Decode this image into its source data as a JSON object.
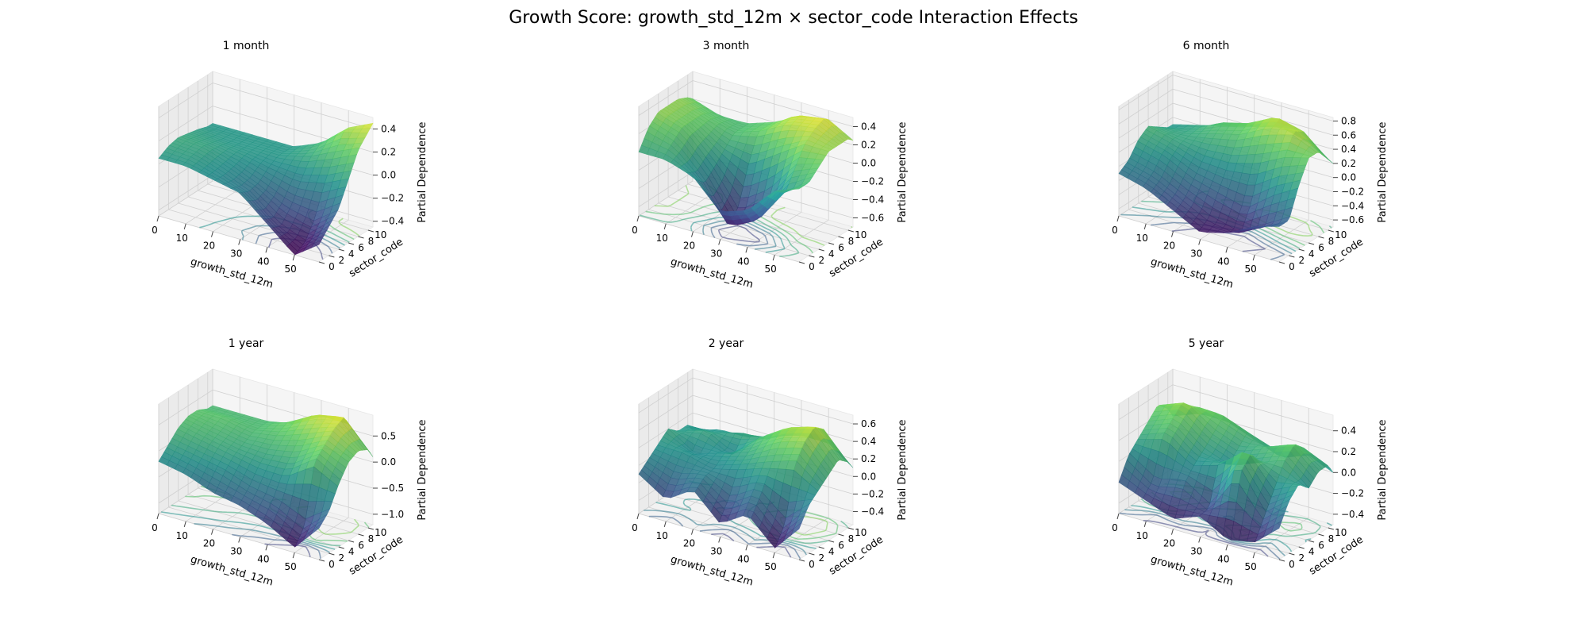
{
  "figure_title": "Growth Score: growth_std_12m × sector_code Interaction Effects",
  "colormap": [
    "#440154",
    "#3b528b",
    "#21918c",
    "#5ec962",
    "#fde725"
  ],
  "chart_data": [
    {
      "type": "surface3d",
      "title": "1 month",
      "xlabel": "growth_std_12m",
      "ylabel": "sector_code",
      "zlabel": "Partial Dependence",
      "xlim": [
        0,
        59
      ],
      "ylim": [
        0,
        11
      ],
      "zlim": [
        -0.45,
        0.5
      ],
      "xticks": [
        0,
        10,
        20,
        30,
        40,
        50
      ],
      "yticks": [
        0,
        2,
        4,
        6,
        8,
        10
      ],
      "zticks": [
        -0.4,
        -0.2,
        0.0,
        0.2,
        0.4
      ],
      "grid": true,
      "contour_projection": true,
      "grid_x": [
        0,
        10,
        20,
        30,
        40,
        50,
        59
      ],
      "grid_y": [
        0,
        2,
        4,
        6,
        8,
        10,
        11
      ],
      "z": [
        [
          0.05,
          0.05,
          0.0,
          -0.05,
          -0.25,
          -0.45,
          -0.3
        ],
        [
          0.1,
          0.08,
          0.0,
          -0.1,
          -0.3,
          -0.4,
          -0.2
        ],
        [
          0.12,
          0.1,
          0.02,
          -0.08,
          -0.2,
          -0.25,
          -0.1
        ],
        [
          0.1,
          0.08,
          0.05,
          0.0,
          -0.05,
          0.0,
          0.1
        ],
        [
          0.08,
          0.05,
          0.05,
          0.05,
          0.1,
          0.2,
          0.3
        ],
        [
          0.05,
          0.05,
          0.05,
          0.05,
          0.15,
          0.35,
          0.4
        ],
        [
          0.05,
          0.05,
          0.05,
          0.05,
          0.15,
          0.35,
          0.45
        ]
      ]
    },
    {
      "type": "surface3d",
      "title": "3 month",
      "xlabel": "growth_std_12m",
      "ylabel": "sector_code",
      "zlabel": "Partial Dependence",
      "xlim": [
        0,
        59
      ],
      "ylim": [
        0,
        11
      ],
      "zlim": [
        -0.7,
        0.5
      ],
      "xticks": [
        0,
        10,
        20,
        30,
        40,
        50
      ],
      "yticks": [
        0,
        2,
        4,
        6,
        8,
        10
      ],
      "zticks": [
        -0.6,
        -0.4,
        -0.2,
        0.0,
        0.2,
        0.4
      ],
      "grid": true,
      "contour_projection": true,
      "grid_x": [
        0,
        10,
        20,
        30,
        40,
        50,
        59
      ],
      "grid_y": [
        0,
        2,
        4,
        6,
        8,
        10,
        11
      ],
      "z": [
        [
          0.0,
          0.0,
          -0.1,
          -0.4,
          -0.3,
          0.0,
          0.1
        ],
        [
          0.2,
          0.1,
          -0.2,
          -0.65,
          -0.5,
          -0.1,
          0.1
        ],
        [
          0.3,
          0.2,
          -0.1,
          -0.5,
          -0.3,
          0.1,
          0.2
        ],
        [
          0.3,
          0.2,
          0.0,
          -0.1,
          0.1,
          0.3,
          0.3
        ],
        [
          0.3,
          0.2,
          0.1,
          0.2,
          0.35,
          0.4,
          0.3
        ],
        [
          0.25,
          0.15,
          0.1,
          0.2,
          0.4,
          0.45,
          0.3
        ],
        [
          0.2,
          0.1,
          0.1,
          0.2,
          0.35,
          0.4,
          0.25
        ]
      ]
    },
    {
      "type": "surface3d",
      "title": "6 month",
      "xlabel": "growth_std_12m",
      "ylabel": "sector_code",
      "zlabel": "Partial Dependence",
      "xlim": [
        0,
        59
      ],
      "ylim": [
        0,
        11
      ],
      "zlim": [
        -0.7,
        0.85
      ],
      "xticks": [
        0,
        10,
        20,
        30,
        40,
        50
      ],
      "yticks": [
        0,
        2,
        4,
        6,
        8,
        10
      ],
      "zticks": [
        -0.6,
        -0.4,
        -0.2,
        0.0,
        0.2,
        0.4,
        0.6,
        0.8
      ],
      "grid": true,
      "contour_projection": true,
      "grid_x": [
        0,
        10,
        20,
        30,
        40,
        50,
        59
      ],
      "grid_y": [
        0,
        2,
        4,
        6,
        8,
        10,
        11
      ],
      "z": [
        [
          -0.1,
          -0.2,
          -0.4,
          -0.6,
          -0.5,
          -0.3,
          -0.2
        ],
        [
          0.0,
          -0.1,
          -0.3,
          -0.5,
          -0.6,
          -0.4,
          -0.2
        ],
        [
          0.2,
          0.1,
          -0.1,
          -0.2,
          -0.3,
          0.0,
          0.2
        ],
        [
          0.3,
          0.2,
          0.1,
          0.1,
          0.2,
          0.4,
          0.5
        ],
        [
          0.2,
          0.2,
          0.3,
          0.4,
          0.6,
          0.7,
          0.5
        ],
        [
          0.1,
          0.2,
          0.4,
          0.5,
          0.7,
          0.6,
          0.3
        ],
        [
          0.1,
          0.2,
          0.3,
          0.4,
          0.5,
          0.4,
          0.2
        ]
      ]
    },
    {
      "type": "surface3d",
      "title": "1 year",
      "xlabel": "growth_std_12m",
      "ylabel": "sector_code",
      "zlabel": "Partial Dependence",
      "xlim": [
        0,
        59
      ],
      "ylim": [
        0,
        11
      ],
      "zlim": [
        -1.2,
        0.9
      ],
      "xticks": [
        0,
        10,
        20,
        30,
        40,
        50
      ],
      "yticks": [
        0,
        2,
        4,
        6,
        8,
        10
      ],
      "zticks": [
        -1.0,
        -0.5,
        0.0,
        0.5
      ],
      "grid": true,
      "contour_projection": true,
      "grid_x": [
        0,
        10,
        20,
        30,
        40,
        50,
        59
      ],
      "grid_y": [
        0,
        2,
        4,
        6,
        8,
        10,
        11
      ],
      "z": [
        [
          -0.2,
          -0.3,
          -0.5,
          -0.6,
          -0.8,
          -1.1,
          -0.6
        ],
        [
          0.0,
          -0.1,
          -0.2,
          -0.4,
          -0.5,
          -0.8,
          -0.4
        ],
        [
          0.2,
          0.1,
          0.0,
          -0.1,
          -0.1,
          0.3,
          0.0
        ],
        [
          0.3,
          0.2,
          0.1,
          0.1,
          0.2,
          0.5,
          0.3
        ],
        [
          0.3,
          0.3,
          0.2,
          0.3,
          0.5,
          0.7,
          0.4
        ],
        [
          0.2,
          0.2,
          0.2,
          0.4,
          0.7,
          0.8,
          0.3
        ],
        [
          0.2,
          0.2,
          0.2,
          0.3,
          0.6,
          0.6,
          0.1
        ]
      ]
    },
    {
      "type": "surface3d",
      "title": "2 year",
      "xlabel": "growth_std_12m",
      "ylabel": "sector_code",
      "zlabel": "Partial Dependence",
      "xlim": [
        0,
        59
      ],
      "ylim": [
        0,
        11
      ],
      "zlim": [
        -0.55,
        0.7
      ],
      "xticks": [
        0,
        10,
        20,
        30,
        40,
        50
      ],
      "yticks": [
        0,
        2,
        4,
        6,
        8,
        10
      ],
      "zticks": [
        -0.4,
        -0.2,
        0.0,
        0.2,
        0.4,
        0.6
      ],
      "grid": true,
      "contour_projection": true,
      "grid_x": [
        0,
        10,
        20,
        30,
        40,
        50,
        59
      ],
      "grid_y": [
        0,
        2,
        4,
        6,
        8,
        10,
        11
      ],
      "z": [
        [
          -0.1,
          -0.3,
          -0.1,
          -0.4,
          -0.2,
          -0.5,
          -0.2
        ],
        [
          0.0,
          -0.1,
          0.0,
          -0.2,
          0.0,
          -0.3,
          0.0
        ],
        [
          0.1,
          0.1,
          0.0,
          0.1,
          0.2,
          0.3,
          0.1
        ],
        [
          0.2,
          0.0,
          0.1,
          0.2,
          0.4,
          0.5,
          0.2
        ],
        [
          0.1,
          0.2,
          0.0,
          0.3,
          0.5,
          0.6,
          0.3
        ],
        [
          0.1,
          0.1,
          0.2,
          0.2,
          0.4,
          0.5,
          0.2
        ],
        [
          0.0,
          0.1,
          0.1,
          0.2,
          0.3,
          0.3,
          0.1
        ]
      ]
    },
    {
      "type": "surface3d",
      "title": "5 year",
      "xlabel": "growth_std_12m",
      "ylabel": "sector_code",
      "zlabel": "Partial Dependence",
      "xlim": [
        0,
        59
      ],
      "ylim": [
        0,
        11
      ],
      "zlim": [
        -0.5,
        0.55
      ],
      "xticks": [
        0,
        10,
        20,
        30,
        40,
        50
      ],
      "yticks": [
        0,
        2,
        4,
        6,
        8,
        10
      ],
      "zticks": [
        -0.4,
        -0.2,
        0.0,
        0.2,
        0.4
      ],
      "grid": true,
      "contour_projection": true,
      "grid_x": [
        0,
        10,
        20,
        30,
        40,
        50,
        59
      ],
      "grid_y": [
        0,
        2,
        4,
        6,
        8,
        10,
        11
      ],
      "z": [
        [
          -0.2,
          -0.3,
          -0.4,
          -0.3,
          -0.45,
          -0.4,
          -0.2
        ],
        [
          0.0,
          -0.2,
          -0.1,
          -0.3,
          0.2,
          -0.2,
          0.0
        ],
        [
          0.1,
          0.2,
          0.0,
          0.1,
          0.3,
          0.0,
          0.1
        ],
        [
          0.2,
          0.3,
          0.1,
          0.0,
          0.1,
          0.2,
          0.0
        ],
        [
          0.3,
          0.4,
          0.2,
          0.1,
          0.2,
          0.3,
          0.1
        ],
        [
          0.2,
          0.3,
          0.3,
          0.2,
          0.1,
          0.2,
          0.1
        ],
        [
          0.1,
          0.2,
          0.2,
          0.1,
          0.0,
          0.1,
          0.0
        ]
      ]
    }
  ]
}
